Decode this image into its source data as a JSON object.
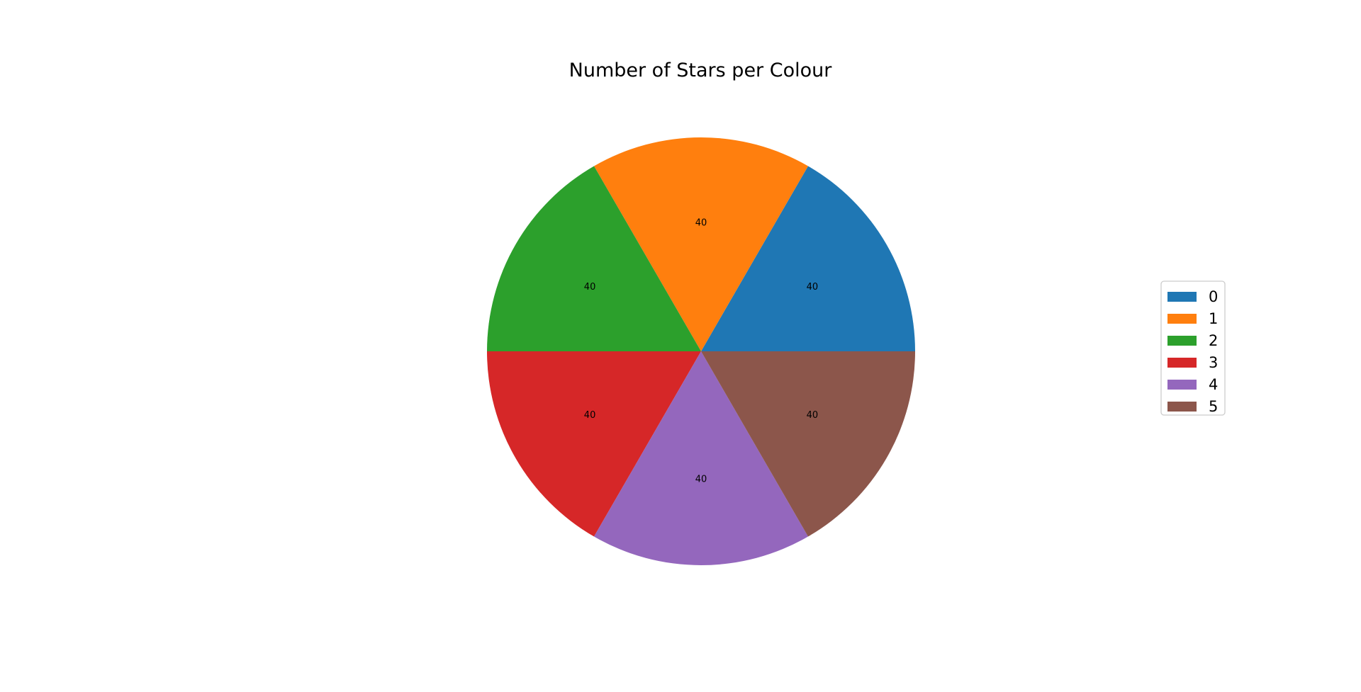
{
  "chart_data": {
    "type": "pie",
    "title": "Number of Stars per Colour",
    "slices": [
      {
        "label": "0",
        "value": 40,
        "color": "#1f77b4",
        "value_label": "40"
      },
      {
        "label": "1",
        "value": 40,
        "color": "#ff7f0e",
        "value_label": "40"
      },
      {
        "label": "2",
        "value": 40,
        "color": "#2ca02c",
        "value_label": "40"
      },
      {
        "label": "3",
        "value": 40,
        "color": "#d62728",
        "value_label": "40"
      },
      {
        "label": "4",
        "value": 40,
        "color": "#9467bd",
        "value_label": "40"
      },
      {
        "label": "5",
        "value": 40,
        "color": "#8c564b",
        "value_label": "40"
      }
    ],
    "start_angle_deg": 0,
    "direction": "counterclockwise",
    "legend": {
      "placement": "right"
    }
  }
}
